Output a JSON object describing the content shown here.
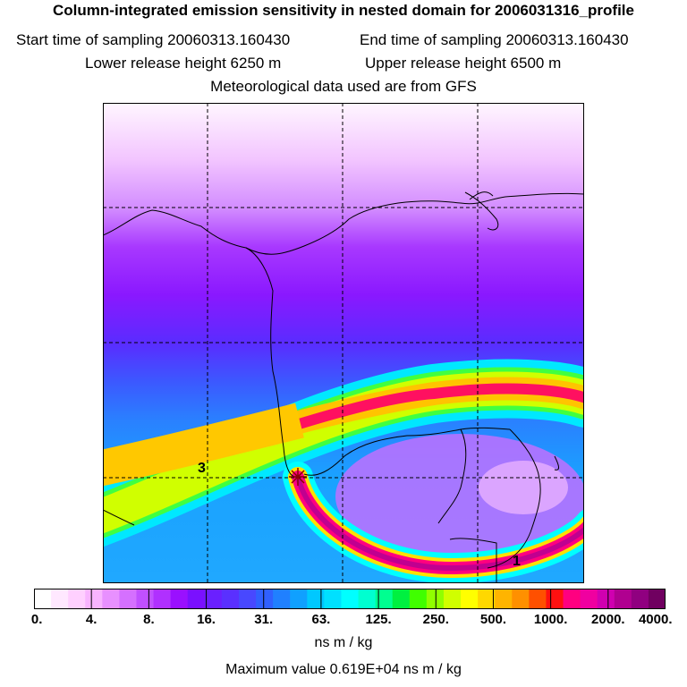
{
  "header": {
    "title": "Column-integrated emission sensitivity in nested domain for 2006031316_profile",
    "start_label": "Start time of sampling 20060313.160430",
    "end_label": "End time of sampling 20060313.160430",
    "lower_label": "Lower release height  6250 m",
    "upper_label": "Upper release height  6500 m",
    "met_label": "Meteorological data used are from GFS"
  },
  "map": {
    "markers": [
      {
        "label": "3"
      },
      {
        "label": "1"
      }
    ],
    "release_site_symbol": "star"
  },
  "colorbar": {
    "ticks": [
      "0.",
      "4.",
      "8.",
      "16.",
      "31.",
      "63.",
      "125.",
      "250.",
      "500.",
      "1000.",
      "2000.",
      "4000."
    ],
    "colors": [
      "#ffffff",
      "#ffe8ff",
      "#ffd0ff",
      "#f8b4ff",
      "#e890ff",
      "#d570ff",
      "#c050ff",
      "#b030ff",
      "#9a10ff",
      "#7a10ff",
      "#6a20ff",
      "#5a30ff",
      "#4848ff",
      "#3060ff",
      "#2080ff",
      "#10a0ff",
      "#00c8ff",
      "#00e0ff",
      "#00ffff",
      "#00ffd0",
      "#00ff90",
      "#00f040",
      "#40ff00",
      "#90ff00",
      "#d0ff00",
      "#ffff00",
      "#ffd800",
      "#ffb400",
      "#ff9000",
      "#ff5000",
      "#ff1010",
      "#ff0080",
      "#f000a0",
      "#d000b0",
      "#b00090",
      "#900080",
      "#700060"
    ],
    "unit_label": "ns m / kg",
    "max_label": "Maximum value  0.619E+04 ns m / kg"
  }
}
